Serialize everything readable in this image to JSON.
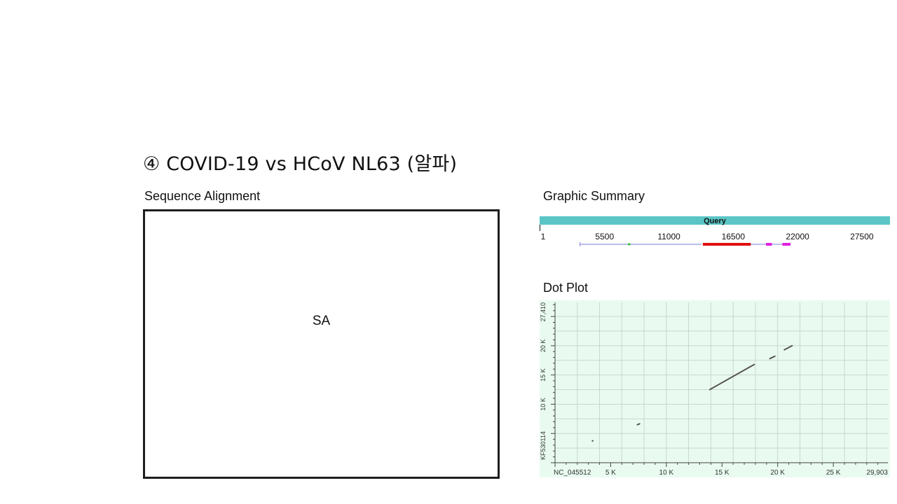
{
  "slide": {
    "title": "④ COVID-19 vs HCoV NL63 (알파)"
  },
  "sequence_alignment": {
    "label": "Sequence Alignment",
    "placeholder_text": "SA"
  },
  "graphic_summary": {
    "label": "Graphic Summary",
    "bar_label": "Query",
    "bar_color": "#5bc5c5",
    "axis_ticks": [
      {
        "value": 1,
        "label": "1"
      },
      {
        "value": 5500,
        "label": "5500"
      },
      {
        "value": 11000,
        "label": "11000"
      },
      {
        "value": 16500,
        "label": "16500"
      },
      {
        "value": 22000,
        "label": "22000"
      },
      {
        "value": 27500,
        "label": "27500"
      }
    ],
    "axis_max": 29903,
    "hits": [
      {
        "start": 3400,
        "end": 7600,
        "color": "#7b7bd4",
        "weight": "thin"
      },
      {
        "start": 7500,
        "end": 7700,
        "color": "#3cc43c",
        "weight": "mark"
      },
      {
        "start": 7700,
        "end": 13800,
        "color": "#7b7bd4",
        "weight": "thin"
      },
      {
        "start": 13900,
        "end": 18000,
        "color": "#e01010",
        "weight": "thick"
      },
      {
        "start": 18000,
        "end": 19300,
        "color": "#7b7bd4",
        "weight": "thin"
      },
      {
        "start": 19300,
        "end": 19800,
        "color": "#e020e0",
        "weight": "medium"
      },
      {
        "start": 19800,
        "end": 20700,
        "color": "#7b7bd4",
        "weight": "thin"
      },
      {
        "start": 20700,
        "end": 21400,
        "color": "#e020e0",
        "weight": "medium"
      }
    ]
  },
  "dot_plot": {
    "label": "Dot Plot",
    "x_axis_name": "NC_045512",
    "y_axis_name": "KF530114",
    "x_max": 29903,
    "y_max": 27410,
    "x_ticks": [
      {
        "value": 5000,
        "label": "5 K"
      },
      {
        "value": 10000,
        "label": "10 K"
      },
      {
        "value": 15000,
        "label": "15 K"
      },
      {
        "value": 20000,
        "label": "20 K"
      },
      {
        "value": 25000,
        "label": "25 K"
      },
      {
        "value": 29903,
        "label": "29,903"
      }
    ],
    "y_ticks": [
      {
        "value": 10000,
        "label": "10 K"
      },
      {
        "value": 15000,
        "label": "15 K"
      },
      {
        "value": 20000,
        "label": "20 K"
      },
      {
        "value": 27410,
        "label": "27,410"
      }
    ],
    "background_color": "#e9fbf0",
    "grid_color": "#c9d6cf",
    "segments": [
      {
        "x1": 13900,
        "y1": 12500,
        "x2": 17900,
        "y2": 16800
      },
      {
        "x1": 19300,
        "y1": 17800,
        "x2": 19750,
        "y2": 18200
      },
      {
        "x1": 20600,
        "y1": 19300,
        "x2": 21300,
        "y2": 20000
      },
      {
        "x1": 7400,
        "y1": 6500,
        "x2": 7600,
        "y2": 6650
      },
      {
        "x1": 3350,
        "y1": 3700,
        "x2": 3400,
        "y2": 3750
      }
    ]
  }
}
